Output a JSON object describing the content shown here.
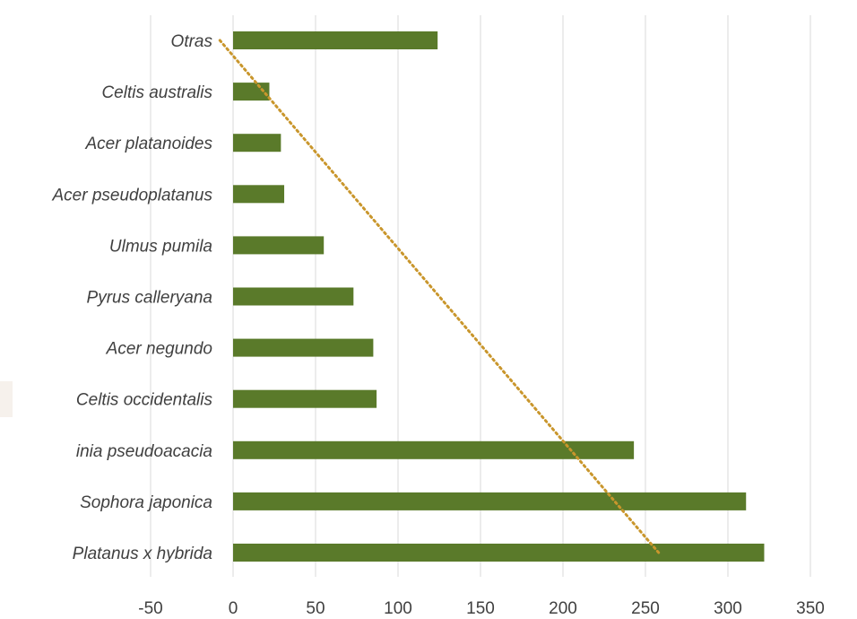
{
  "chart_data": {
    "type": "bar",
    "orientation": "horizontal",
    "title": "",
    "xlabel": "",
    "ylabel": "",
    "categories": [
      "Otras",
      "Celtis australis",
      "Acer platanoides",
      "Acer pseudoplatanus",
      "Ulmus pumila",
      "Pyrus calleryana",
      "Acer negundo",
      "Celtis occidentalis",
      "inia pseudoacacia",
      "Sophora japonica",
      "Platanus x hybrida"
    ],
    "values": [
      124,
      22,
      29,
      31,
      55,
      73,
      85,
      87,
      243,
      311,
      322
    ],
    "xlim": [
      -50,
      350
    ],
    "xticks": [
      "-50",
      "0",
      "50",
      "100",
      "150",
      "200",
      "250",
      "300",
      "350"
    ],
    "grid": "vertical",
    "legend": "none",
    "trendline": {
      "style": "dotted",
      "color": "#C9962C",
      "start": {
        "category": "Otras",
        "value": -8
      },
      "end": {
        "category": "Platanus x hybrida",
        "value": 258
      }
    },
    "bar_color": "#5A7A2A",
    "grid_color": "#D9D9D9"
  }
}
